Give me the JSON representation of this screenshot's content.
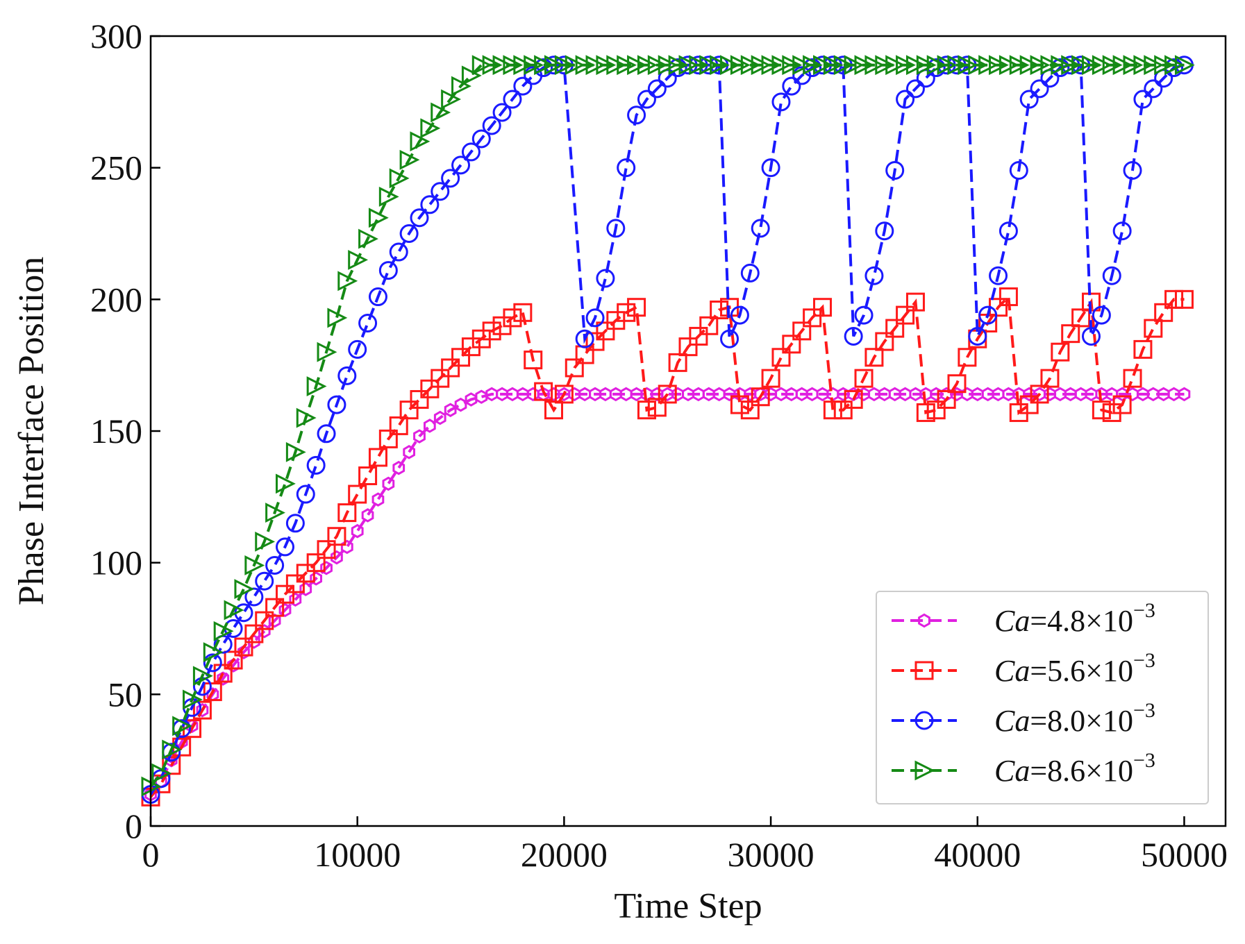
{
  "chart_data": {
    "type": "line",
    "title": "",
    "xlabel": "Time Step",
    "ylabel": "Phase Interface Position",
    "xlim": [
      0,
      52000
    ],
    "ylim": [
      0,
      300
    ],
    "xticks": [
      0,
      10000,
      20000,
      30000,
      40000,
      50000
    ],
    "yticks": [
      0,
      50,
      100,
      150,
      200,
      250,
      300
    ],
    "xtick_labels": [
      "0",
      "10000",
      "20000",
      "30000",
      "40000",
      "50000"
    ],
    "ytick_labels": [
      "0",
      "50",
      "100",
      "150",
      "200",
      "250",
      "300"
    ],
    "grid": false,
    "legend_position": "lower-right",
    "series": [
      {
        "name": "Ca=4.8×10⁻³",
        "legend": {
          "prefix": "Ca",
          "value": "=4.8×10",
          "exp": "−3"
        },
        "color": "#e020e0",
        "marker": "hexagon",
        "x": [
          0,
          500,
          1000,
          1500,
          2000,
          2500,
          3000,
          3500,
          4000,
          4500,
          5000,
          5500,
          6000,
          6500,
          7000,
          7500,
          8000,
          8500,
          9000,
          9500,
          10000,
          10500,
          11000,
          11500,
          12000,
          12500,
          13000,
          13500,
          14000,
          14500,
          15000,
          15500,
          16000,
          16500,
          17000,
          17500,
          18000,
          18500,
          19000,
          19500,
          20000,
          20500,
          21000,
          21500,
          22000,
          22500,
          23000,
          23500,
          24000,
          24500,
          25000,
          25500,
          26000,
          26500,
          27000,
          27500,
          28000,
          28500,
          29000,
          29500,
          30000,
          30500,
          31000,
          31500,
          32000,
          32500,
          33000,
          33500,
          34000,
          34500,
          35000,
          35500,
          36000,
          36500,
          37000,
          37500,
          38000,
          38500,
          39000,
          39500,
          40000,
          40500,
          41000,
          41500,
          42000,
          42500,
          43000,
          43500,
          44000,
          44500,
          45000,
          45500,
          46000,
          46500,
          47000,
          47500,
          48000,
          48500,
          49000,
          49500,
          50000
        ],
        "y": [
          12,
          17,
          25,
          32,
          38,
          44,
          50,
          56,
          61,
          66,
          70,
          74,
          78,
          82,
          86,
          90,
          94,
          98,
          102,
          106,
          112,
          118,
          124,
          130,
          136,
          142,
          148,
          152,
          155,
          158,
          160,
          162,
          163,
          164,
          164,
          164,
          164,
          164,
          164,
          164,
          164,
          164,
          164,
          164,
          164,
          164,
          164,
          164,
          164,
          164,
          164,
          164,
          164,
          164,
          164,
          164,
          164,
          164,
          164,
          164,
          164,
          164,
          164,
          164,
          164,
          164,
          164,
          164,
          164,
          164,
          164,
          164,
          164,
          164,
          164,
          164,
          164,
          164,
          164,
          164,
          164,
          164,
          164,
          164,
          164,
          164,
          164,
          164,
          164,
          164,
          164,
          164,
          164,
          164,
          164,
          164,
          164,
          164,
          164,
          164,
          164
        ]
      },
      {
        "name": "Ca=5.6×10⁻³",
        "legend": {
          "prefix": "Ca",
          "value": "=5.6×10",
          "exp": "−3"
        },
        "color": "#ff1a1a",
        "marker": "square",
        "x": [
          0,
          500,
          1000,
          1500,
          2000,
          2500,
          3000,
          3500,
          4000,
          4500,
          5000,
          5500,
          6000,
          6500,
          7000,
          7500,
          8000,
          8500,
          9000,
          9500,
          10000,
          10500,
          11000,
          11500,
          12000,
          12500,
          13000,
          13500,
          14000,
          14500,
          15000,
          15500,
          16000,
          16500,
          17000,
          17500,
          18000,
          18500,
          19000,
          19500,
          20000,
          20500,
          21000,
          21500,
          22000,
          22500,
          23000,
          23500,
          24000,
          24500,
          25000,
          25500,
          26000,
          26500,
          27000,
          27500,
          28000,
          28500,
          29000,
          29500,
          30000,
          30500,
          31000,
          31500,
          32000,
          32500,
          33000,
          33500,
          34000,
          34500,
          35000,
          35500,
          36000,
          36500,
          37000,
          37500,
          38000,
          38500,
          39000,
          39500,
          40000,
          40500,
          41000,
          41500,
          42000,
          42500,
          43000,
          43500,
          44000,
          44500,
          45000,
          45500,
          46000,
          46500,
          47000,
          47500,
          48000,
          48500,
          49000,
          49500,
          50000
        ],
        "y": [
          11,
          16,
          23,
          30,
          37,
          44,
          51,
          58,
          63,
          68,
          73,
          78,
          83,
          88,
          92,
          96,
          100,
          105,
          110,
          119,
          126,
          133,
          140,
          147,
          152,
          158,
          162,
          166,
          170,
          174,
          178,
          182,
          185,
          188,
          190,
          193,
          195,
          177,
          165,
          158,
          164,
          174,
          179,
          184,
          188,
          192,
          195,
          197,
          158,
          159,
          164,
          176,
          182,
          186,
          190,
          196,
          197,
          160,
          158,
          163,
          170,
          178,
          183,
          188,
          193,
          197,
          158,
          158,
          162,
          170,
          178,
          184,
          189,
          194,
          199,
          157,
          158,
          162,
          168,
          178,
          185,
          191,
          197,
          201,
          157,
          160,
          164,
          170,
          180,
          187,
          193,
          199,
          158,
          157,
          160,
          170,
          181,
          189,
          195,
          200,
          200
        ]
      },
      {
        "name": "Ca=8.0×10⁻³",
        "legend": {
          "prefix": "Ca",
          "value": "=8.0×10",
          "exp": "−3"
        },
        "color": "#1a1aff",
        "marker": "circle",
        "x": [
          0,
          500,
          1000,
          1500,
          2000,
          2500,
          3000,
          3500,
          4000,
          4500,
          5000,
          5500,
          6000,
          6500,
          7000,
          7500,
          8000,
          8500,
          9000,
          9500,
          10000,
          10500,
          11000,
          11500,
          12000,
          12500,
          13000,
          13500,
          14000,
          14500,
          15000,
          15500,
          16000,
          16500,
          17000,
          17500,
          18000,
          18500,
          19000,
          19500,
          20000,
          21000,
          21500,
          22000,
          22500,
          23000,
          23500,
          24000,
          24500,
          25000,
          25500,
          26000,
          26500,
          27000,
          27500,
          28000,
          28500,
          29000,
          29500,
          30000,
          30500,
          31000,
          31500,
          32000,
          32500,
          33000,
          33500,
          34000,
          34500,
          35000,
          35500,
          36000,
          36500,
          37000,
          37500,
          38000,
          38500,
          39000,
          39500,
          40000,
          40500,
          41000,
          41500,
          42000,
          42500,
          43000,
          43500,
          44000,
          44500,
          45000,
          45500,
          46000,
          46500,
          47000,
          47500,
          48000,
          48500,
          49000,
          49500,
          50000
        ],
        "y": [
          12,
          18,
          28,
          37,
          45,
          53,
          62,
          69,
          75,
          81,
          87,
          93,
          99,
          106,
          115,
          126,
          137,
          149,
          160,
          171,
          181,
          191,
          201,
          211,
          218,
          225,
          231,
          236,
          241,
          246,
          251,
          256,
          261,
          266,
          271,
          276,
          281,
          285,
          288,
          289,
          289,
          185,
          193,
          208,
          227,
          250,
          270,
          276,
          280,
          284,
          288,
          289,
          289,
          289,
          289,
          185,
          194,
          210,
          227,
          250,
          275,
          281,
          285,
          288,
          289,
          289,
          289,
          186,
          194,
          209,
          226,
          249,
          276,
          280,
          284,
          288,
          289,
          289,
          289,
          186,
          194,
          209,
          226,
          249,
          276,
          280,
          284,
          288,
          289,
          289,
          186,
          194,
          209,
          226,
          249,
          276,
          280,
          284,
          288,
          289
        ]
      },
      {
        "name": "Ca=8.6×10⁻³",
        "legend": {
          "prefix": "Ca",
          "value": "=8.6×10",
          "exp": "−3"
        },
        "color": "#158a15",
        "marker": "triangle-right",
        "x": [
          0,
          500,
          1000,
          1500,
          2000,
          2500,
          3000,
          3500,
          4000,
          4500,
          5000,
          5500,
          6000,
          6500,
          7000,
          7500,
          8000,
          8500,
          9000,
          9500,
          10000,
          10500,
          11000,
          11500,
          12000,
          12500,
          13000,
          13500,
          14000,
          14500,
          15000,
          15500,
          16000,
          16500,
          17000,
          17500,
          18000,
          18500,
          19000,
          19500,
          20000,
          20500,
          21000,
          21500,
          22000,
          22500,
          23000,
          23500,
          24000,
          24500,
          25000,
          25500,
          26000,
          26500,
          27000,
          27500,
          28000,
          28500,
          29000,
          29500,
          30000,
          30500,
          31000,
          31500,
          32000,
          32500,
          33000,
          33500,
          34000,
          34500,
          35000,
          35500,
          36000,
          36500,
          37000,
          37500,
          38000,
          38500,
          39000,
          39500,
          40000,
          40500,
          41000,
          41500,
          42000,
          42500,
          43000,
          43500,
          44000,
          44500,
          45000,
          45500,
          46000,
          46500,
          47000,
          47500,
          48000,
          48500,
          49000,
          49500,
          50000
        ],
        "y": [
          15,
          20,
          29,
          38,
          48,
          57,
          66,
          74,
          82,
          90,
          99,
          108,
          119,
          130,
          142,
          155,
          167,
          180,
          193,
          207,
          215,
          223,
          231,
          239,
          246,
          253,
          260,
          265,
          271,
          276,
          281,
          285,
          289,
          289,
          289,
          289,
          289,
          289,
          289,
          289,
          289,
          289,
          289,
          289,
          289,
          289,
          289,
          289,
          289,
          289,
          289,
          289,
          289,
          289,
          289,
          289,
          289,
          289,
          289,
          289,
          289,
          289,
          289,
          289,
          289,
          289,
          289,
          289,
          289,
          289,
          289,
          289,
          289,
          289,
          289,
          289,
          289,
          289,
          289,
          289,
          289,
          289,
          289,
          289,
          289,
          289,
          289,
          289,
          289,
          289,
          289,
          289,
          289,
          289,
          289,
          289,
          289,
          289,
          289,
          289,
          289
        ]
      }
    ]
  }
}
